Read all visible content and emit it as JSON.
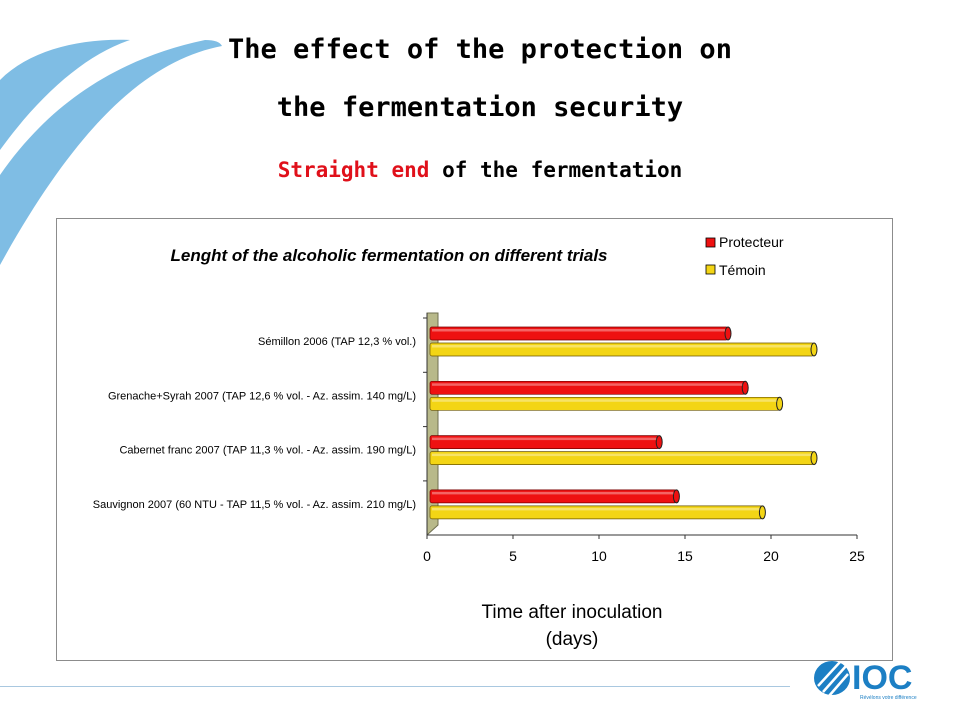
{
  "slide": {
    "title_line1": "The effect of the protection on",
    "title_line2": "the fermentation security",
    "subtitle_red": "Straight end",
    "subtitle_rest": " of the fermentation"
  },
  "logo": {
    "text": "IOC",
    "tagline": "Révélons votre différence"
  },
  "colors": {
    "protecteur": "#ee1111",
    "temoin": "#f3d515",
    "swoosh": "#7fbde4",
    "logo": "#1c7fc4"
  },
  "chart_data": {
    "type": "bar",
    "orientation": "horizontal",
    "title": "Lenght of the alcoholic fermentation on different trials",
    "xlabel_line1": "Time after inoculation",
    "xlabel_line2": "(days)",
    "xlim": [
      0,
      25
    ],
    "xticks": [
      "0",
      "5",
      "10",
      "15",
      "20",
      "25"
    ],
    "legend_position": "top-right",
    "categories": [
      "Sémillon 2006 (TAP 12,3 % vol.)",
      "Grenache+Syrah 2007 (TAP 12,6 % vol. - Az. assim. 140 mg/L)",
      "Cabernet franc 2007 (TAP 11,3 % vol. - Az. assim. 190 mg/L)",
      "Sauvignon 2007 (60 NTU - TAP  11,5 % vol. - Az. assim. 210 mg/L)"
    ],
    "series": [
      {
        "name": "Protecteur",
        "values": [
          17.5,
          18.5,
          13.5,
          14.5
        ]
      },
      {
        "name": "Témoin",
        "values": [
          22.5,
          20.5,
          22.5,
          19.5
        ]
      }
    ]
  }
}
